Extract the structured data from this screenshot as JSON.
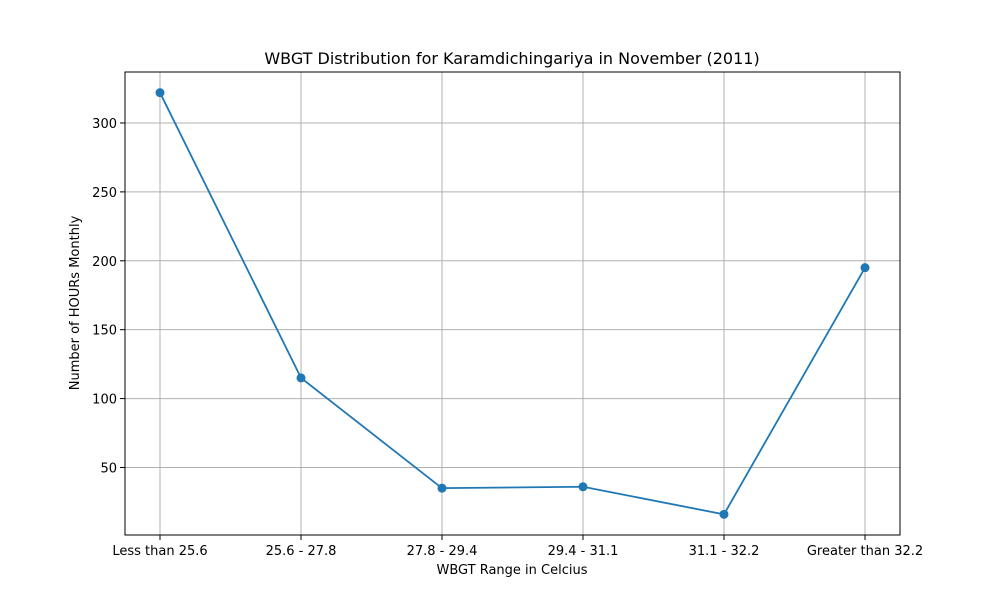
{
  "chart_data": {
    "type": "line",
    "title": "WBGT Distribution for Karamdichingariya in November (2011)",
    "xlabel": "WBGT Range in Celcius",
    "ylabel": "Number of HOURs Monthly",
    "categories": [
      "Less than 25.6",
      "25.6 - 27.8",
      "27.8 - 29.4",
      "29.4 - 31.1",
      "31.1 - 32.2",
      "Greater than 32.2"
    ],
    "values": [
      322,
      115,
      35,
      36,
      16,
      195
    ],
    "yticks": [
      50,
      100,
      150,
      200,
      250,
      300
    ],
    "ylim": [
      1,
      337
    ],
    "grid": true,
    "line_color": "#1f77b4"
  }
}
